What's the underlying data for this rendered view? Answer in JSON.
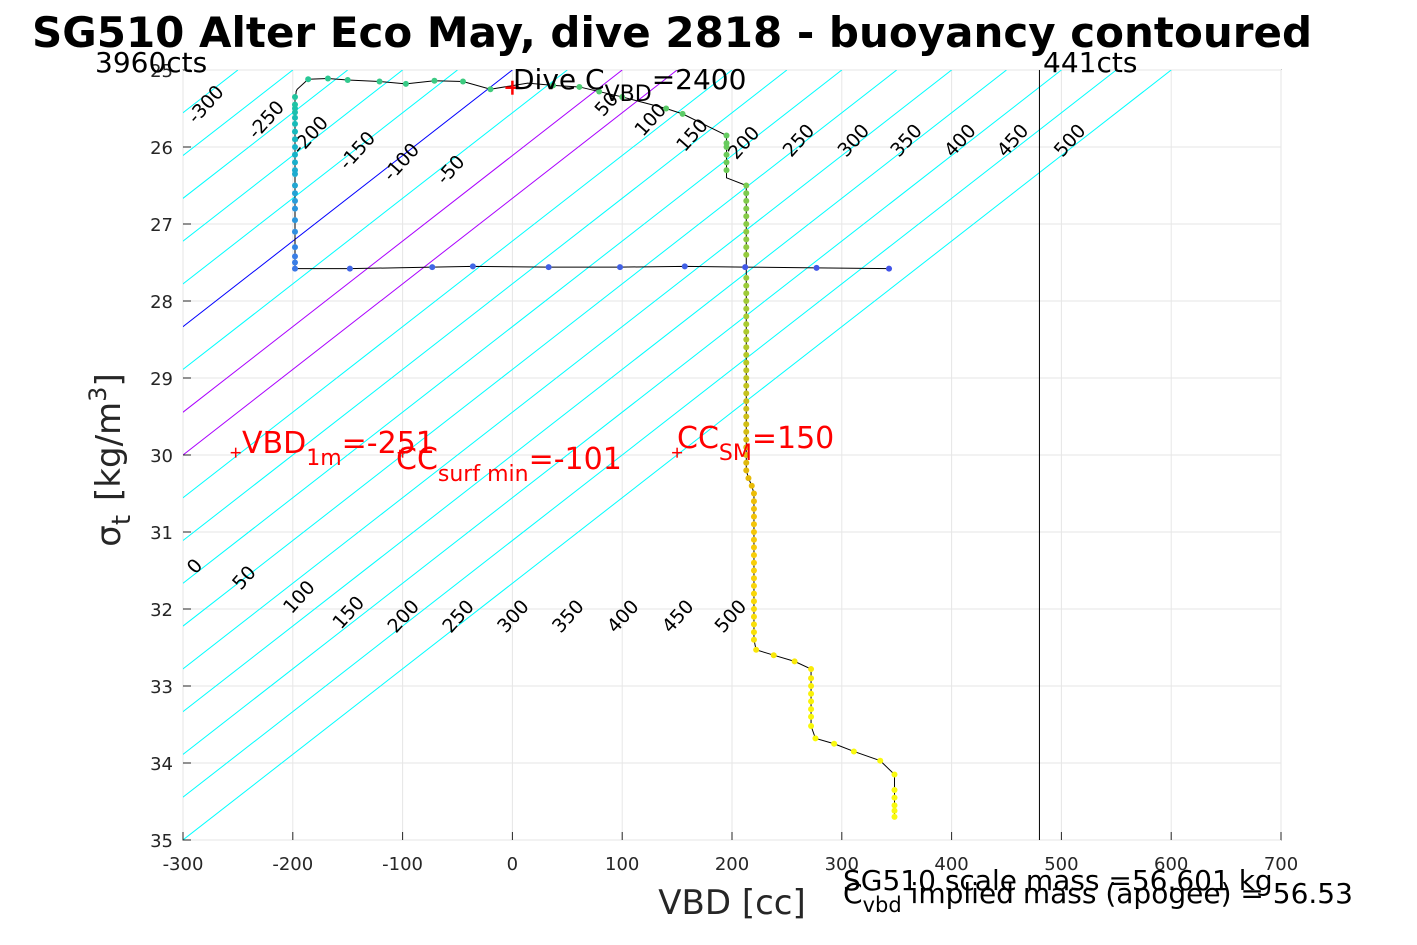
{
  "chart_data": {
    "type": "scatter",
    "title": "SG510 Alter Eco May, dive 2818 - buoyancy contoured",
    "xlabel": "VBD [cc]",
    "ylabel": "σ",
    "ylabel_sub": "t",
    "ylabel_unit": "[kg/m",
    "ylabel_sup": "3",
    "ylabel_close": "]",
    "xlim": [
      -300,
      700
    ],
    "ylim": [
      35,
      25
    ],
    "y_reversed": true,
    "grid": true,
    "x_ticks": [
      "-300",
      "-200",
      "-100",
      "0",
      "100",
      "200",
      "300",
      "400",
      "500",
      "600",
      "700"
    ],
    "y_ticks": [
      "25",
      "26",
      "27",
      "28",
      "29",
      "30",
      "31",
      "32",
      "33",
      "34",
      "35"
    ],
    "corner_left": "3960cts",
    "corner_right": "441cts",
    "count_line_x": 480,
    "header": {
      "main": "Dive C",
      "sub": "VBD",
      "rest": "=2400"
    },
    "contour_slope": 0.01111,
    "contours": [
      {
        "level": "-300",
        "color": "#00ffff",
        "x_at_25": -300
      },
      {
        "level": "-250",
        "color": "#00ffff",
        "x_at_25": -250
      },
      {
        "level": "-200",
        "color": "#00ffff",
        "x_at_25": -200
      },
      {
        "level": "-150",
        "color": "#00ffff",
        "x_at_25": -150
      },
      {
        "level": "-100",
        "color": "#00ffff",
        "x_at_25": -100
      },
      {
        "level": "-50",
        "color": "#00ffff",
        "x_at_25": -50
      },
      {
        "level": "0",
        "color": "#0000ff",
        "x_at_25": 0
      },
      {
        "level": "50",
        "color": "#00ffff",
        "x_at_25": 50
      },
      {
        "level": "100",
        "color": "#aa00ff",
        "x_at_25": 100
      },
      {
        "level": "150",
        "color": "#aa00ff",
        "x_at_25": 150
      },
      {
        "level": "200",
        "color": "#00ffff",
        "x_at_25": 200
      },
      {
        "level": "250",
        "color": "#00ffff",
        "x_at_25": 250
      },
      {
        "level": "300",
        "color": "#00ffff",
        "x_at_25": 300
      },
      {
        "level": "350",
        "color": "#00ffff",
        "x_at_25": 350
      },
      {
        "level": "400",
        "color": "#00ffff",
        "x_at_25": 400
      },
      {
        "level": "450",
        "color": "#00ffff",
        "x_at_25": 450
      },
      {
        "level": "500",
        "color": "#00ffff",
        "x_at_25": 500
      },
      {
        "level": "",
        "color": "#00ffff",
        "x_at_25": 550
      },
      {
        "level": "",
        "color": "#00ffff",
        "x_at_25": 600
      }
    ],
    "contour_labels_top": [
      {
        "text": "-300",
        "x": -275,
        "y": 25.5
      },
      {
        "text": "-250",
        "x": -220,
        "y": 25.7
      },
      {
        "text": "-200",
        "x": -180,
        "y": 25.9
      },
      {
        "text": "-150",
        "x": -137,
        "y": 26.1
      },
      {
        "text": "-100",
        "x": -97,
        "y": 26.25
      },
      {
        "text": "-50",
        "x": -52,
        "y": 26.35
      },
      {
        "text": "50",
        "x": 90,
        "y": 25.5
      },
      {
        "text": "100",
        "x": 130,
        "y": 25.7
      },
      {
        "text": "150",
        "x": 168,
        "y": 25.9
      },
      {
        "text": "200",
        "x": 215,
        "y": 26.0
      },
      {
        "text": "250",
        "x": 265,
        "y": 25.97
      },
      {
        "text": "300",
        "x": 315,
        "y": 25.97
      },
      {
        "text": "350",
        "x": 363,
        "y": 25.97
      },
      {
        "text": "400",
        "x": 412,
        "y": 25.97
      },
      {
        "text": "450",
        "x": 460,
        "y": 25.97
      },
      {
        "text": "500",
        "x": 512,
        "y": 25.97
      }
    ],
    "contour_labels_bottom": [
      {
        "text": "0",
        "x": -285,
        "y": 31.5
      },
      {
        "text": "50",
        "x": -240,
        "y": 31.65
      },
      {
        "text": "100",
        "x": -190,
        "y": 31.9
      },
      {
        "text": "150",
        "x": -145,
        "y": 32.1
      },
      {
        "text": "200",
        "x": -95,
        "y": 32.15
      },
      {
        "text": "250",
        "x": -45,
        "y": 32.15
      },
      {
        "text": "300",
        "x": 5,
        "y": 32.15
      },
      {
        "text": "350",
        "x": 55,
        "y": 32.15
      },
      {
        "text": "400",
        "x": 105,
        "y": 32.15
      },
      {
        "text": "450",
        "x": 155,
        "y": 32.15
      },
      {
        "text": "500",
        "x": 203,
        "y": 32.15
      }
    ],
    "series": [
      {
        "x": [
          343,
          277,
          212,
          157,
          98,
          33,
          -36,
          -73,
          -148,
          -198,
          -198,
          -198,
          -198,
          -198,
          -198,
          -198,
          -198,
          -198,
          -198,
          -198,
          -198,
          -198,
          -198,
          -198,
          -198,
          -198,
          -198,
          -198,
          -198,
          -198,
          -198,
          -198,
          -197,
          -197,
          -196,
          -186,
          -168,
          -150,
          -121,
          -97,
          -71,
          -45,
          -20,
          14,
          37,
          61,
          79,
          100,
          140,
          155,
          195,
          195,
          195,
          195,
          195,
          195,
          195,
          213
        ],
        "y": [
          27.58,
          27.57,
          27.56,
          27.55,
          27.56,
          27.56,
          27.55,
          27.56,
          27.58,
          27.58,
          27.5,
          27.42,
          27.3,
          27.1,
          26.95,
          26.8,
          26.7,
          26.6,
          26.5,
          26.35,
          26.3,
          26.2,
          26.1,
          26.0,
          25.9,
          25.8,
          25.7,
          25.62,
          25.55,
          25.5,
          25.45,
          25.35,
          25.3,
          25.28,
          25.25,
          25.12,
          25.11,
          25.13,
          25.15,
          25.18,
          25.14,
          25.15,
          25.25,
          25.17,
          25.2,
          25.22,
          25.28,
          25.35,
          25.5,
          25.57,
          25.85,
          25.95,
          26.0,
          26.1,
          26.2,
          26.3,
          26.4,
          26.5
        ]
      }
    ],
    "points": [
      {
        "x": 343,
        "y": 27.58,
        "c": "#4153e8"
      },
      {
        "x": 277,
        "y": 27.57,
        "c": "#4157e8"
      },
      {
        "x": 212,
        "y": 27.56,
        "c": "#4157e8"
      },
      {
        "x": 157,
        "y": 27.55,
        "c": "#4160e5"
      },
      {
        "x": 98,
        "y": 27.56,
        "c": "#4160e5"
      },
      {
        "x": 33,
        "y": 27.56,
        "c": "#4160e5"
      },
      {
        "x": -36,
        "y": 27.55,
        "c": "#4166e5"
      },
      {
        "x": -73,
        "y": 27.56,
        "c": "#4166e5"
      },
      {
        "x": -148,
        "y": 27.58,
        "c": "#4166e5"
      },
      {
        "x": -198,
        "y": 27.58,
        "c": "#3a77e6"
      },
      {
        "x": -198,
        "y": 27.5,
        "c": "#3a7ee6"
      },
      {
        "x": -198,
        "y": 27.42,
        "c": "#3a7ee6"
      },
      {
        "x": -198,
        "y": 27.3,
        "c": "#3485e4"
      },
      {
        "x": -198,
        "y": 27.1,
        "c": "#3090e0"
      },
      {
        "x": -198,
        "y": 26.95,
        "c": "#2a96dd"
      },
      {
        "x": -198,
        "y": 26.8,
        "c": "#2a96dd"
      },
      {
        "x": -198,
        "y": 26.7,
        "c": "#2a9bd9"
      },
      {
        "x": -198,
        "y": 26.6,
        "c": "#22a2d5"
      },
      {
        "x": -198,
        "y": 26.5,
        "c": "#22a6d2"
      },
      {
        "x": -198,
        "y": 26.35,
        "c": "#1dabcf"
      },
      {
        "x": -198,
        "y": 26.3,
        "c": "#1dabcf"
      },
      {
        "x": -198,
        "y": 26.2,
        "c": "#18afcc"
      },
      {
        "x": -198,
        "y": 26.1,
        "c": "#16b3c8"
      },
      {
        "x": -198,
        "y": 26.0,
        "c": "#16b3c8"
      },
      {
        "x": -198,
        "y": 25.9,
        "c": "#16b7c2"
      },
      {
        "x": -198,
        "y": 25.8,
        "c": "#16b9be"
      },
      {
        "x": -198,
        "y": 25.7,
        "c": "#17bbb9"
      },
      {
        "x": -198,
        "y": 25.62,
        "c": "#19bdb4"
      },
      {
        "x": -198,
        "y": 25.55,
        "c": "#1bbfae"
      },
      {
        "x": -198,
        "y": 25.5,
        "c": "#1cc1aa"
      },
      {
        "x": -198,
        "y": 25.45,
        "c": "#1ec3a4"
      },
      {
        "x": -198,
        "y": 25.35,
        "c": "#22c59e"
      },
      {
        "x": -186,
        "y": 25.12,
        "c": "#28c796"
      },
      {
        "x": -168,
        "y": 25.11,
        "c": "#2dc892"
      },
      {
        "x": -150,
        "y": 25.13,
        "c": "#31c98e"
      },
      {
        "x": -121,
        "y": 25.15,
        "c": "#35c98a"
      },
      {
        "x": -97,
        "y": 25.18,
        "c": "#38ca86"
      },
      {
        "x": -71,
        "y": 25.14,
        "c": "#3bca83"
      },
      {
        "x": -45,
        "y": 25.15,
        "c": "#3ecb80"
      },
      {
        "x": -20,
        "y": 25.25,
        "c": "#42cb7c"
      },
      {
        "x": 37,
        "y": 25.2,
        "c": "#48cb78"
      },
      {
        "x": 61,
        "y": 25.22,
        "c": "#4ccb74"
      },
      {
        "x": 79,
        "y": 25.28,
        "c": "#50cb70"
      },
      {
        "x": 100,
        "y": 25.35,
        "c": "#54cb6c"
      },
      {
        "x": 140,
        "y": 25.5,
        "c": "#5acb68"
      },
      {
        "x": 155,
        "y": 25.57,
        "c": "#5dcb66"
      },
      {
        "x": 195,
        "y": 25.85,
        "c": "#64cb60"
      },
      {
        "x": 195,
        "y": 25.95,
        "c": "#66cb5e"
      },
      {
        "x": 195,
        "y": 26.0,
        "c": "#68cb5c"
      },
      {
        "x": 195,
        "y": 26.1,
        "c": "#6acb5a"
      },
      {
        "x": 195,
        "y": 26.2,
        "c": "#6ccb58"
      },
      {
        "x": 195,
        "y": 26.3,
        "c": "#6ecb56"
      },
      {
        "x": 213,
        "y": 26.5,
        "c": "#7acb50"
      },
      {
        "x": 213,
        "y": 26.6,
        "c": "#7dcb4e"
      },
      {
        "x": 213,
        "y": 26.7,
        "c": "#80cb4c"
      },
      {
        "x": 213,
        "y": 26.8,
        "c": "#83cb4a"
      },
      {
        "x": 213,
        "y": 26.9,
        "c": "#86cb48"
      },
      {
        "x": 213,
        "y": 27.0,
        "c": "#89cb46"
      },
      {
        "x": 213,
        "y": 27.1,
        "c": "#8ccb44"
      },
      {
        "x": 213,
        "y": 27.2,
        "c": "#8fcb42"
      },
      {
        "x": 213,
        "y": 27.3,
        "c": "#92cb40"
      },
      {
        "x": 213,
        "y": 27.4,
        "c": "#95cb3e"
      },
      {
        "x": 213,
        "y": 27.7,
        "c": "#98cb3c"
      },
      {
        "x": 213,
        "y": 27.8,
        "c": "#9bcb3a"
      },
      {
        "x": 213,
        "y": 27.9,
        "c": "#9ecb38"
      },
      {
        "x": 213,
        "y": 28.0,
        "c": "#a1cb36"
      },
      {
        "x": 213,
        "y": 28.1,
        "c": "#a4cb34"
      },
      {
        "x": 213,
        "y": 28.2,
        "c": "#a7cb32"
      },
      {
        "x": 213,
        "y": 28.3,
        "c": "#aacb30"
      },
      {
        "x": 213,
        "y": 28.4,
        "c": "#adcb2e"
      },
      {
        "x": 213,
        "y": 28.5,
        "c": "#b0c92c"
      },
      {
        "x": 213,
        "y": 28.6,
        "c": "#b3c82a"
      },
      {
        "x": 213,
        "y": 28.7,
        "c": "#b6c728"
      },
      {
        "x": 213,
        "y": 28.8,
        "c": "#b9c626"
      },
      {
        "x": 213,
        "y": 28.9,
        "c": "#bcc524"
      },
      {
        "x": 213,
        "y": 29.0,
        "c": "#bfc422"
      },
      {
        "x": 213,
        "y": 29.1,
        "c": "#c2c320"
      },
      {
        "x": 213,
        "y": 29.2,
        "c": "#c5c21e"
      },
      {
        "x": 213,
        "y": 29.3,
        "c": "#c8c11c"
      },
      {
        "x": 213,
        "y": 29.4,
        "c": "#cbc01a"
      },
      {
        "x": 213,
        "y": 29.5,
        "c": "#cebf18"
      },
      {
        "x": 213,
        "y": 29.6,
        "c": "#d1be16"
      },
      {
        "x": 213,
        "y": 29.7,
        "c": "#d4bd14"
      },
      {
        "x": 213,
        "y": 29.8,
        "c": "#d7bc12"
      },
      {
        "x": 213,
        "y": 29.9,
        "c": "#dabb10"
      },
      {
        "x": 213,
        "y": 30.0,
        "c": "#ddba0e"
      },
      {
        "x": 213,
        "y": 30.1,
        "c": "#e0b90c"
      },
      {
        "x": 213,
        "y": 30.2,
        "c": "#e3b90a"
      },
      {
        "x": 215,
        "y": 30.3,
        "c": "#e6ba08"
      },
      {
        "x": 218,
        "y": 30.4,
        "c": "#e9bb08"
      },
      {
        "x": 220,
        "y": 30.5,
        "c": "#ecbd08"
      },
      {
        "x": 220,
        "y": 30.6,
        "c": "#eebf08"
      },
      {
        "x": 220,
        "y": 30.7,
        "c": "#f0c108"
      },
      {
        "x": 220,
        "y": 30.8,
        "c": "#f2c308"
      },
      {
        "x": 220,
        "y": 30.9,
        "c": "#f4c508"
      },
      {
        "x": 220,
        "y": 31.0,
        "c": "#f5c708"
      },
      {
        "x": 220,
        "y": 31.1,
        "c": "#f6c908"
      },
      {
        "x": 220,
        "y": 31.2,
        "c": "#f7cb08"
      },
      {
        "x": 220,
        "y": 31.3,
        "c": "#f8cd08"
      },
      {
        "x": 220,
        "y": 31.4,
        "c": "#f8cf08"
      },
      {
        "x": 220,
        "y": 31.5,
        "c": "#f9d108"
      },
      {
        "x": 220,
        "y": 31.6,
        "c": "#f9d308"
      },
      {
        "x": 220,
        "y": 31.7,
        "c": "#f9d508"
      },
      {
        "x": 220,
        "y": 31.8,
        "c": "#f9d708"
      },
      {
        "x": 220,
        "y": 31.9,
        "c": "#f9d908"
      },
      {
        "x": 220,
        "y": 32.0,
        "c": "#f9db08"
      },
      {
        "x": 220,
        "y": 32.1,
        "c": "#f9dd08"
      },
      {
        "x": 220,
        "y": 32.2,
        "c": "#f9df08"
      },
      {
        "x": 220,
        "y": 32.3,
        "c": "#f9e108"
      },
      {
        "x": 220,
        "y": 32.4,
        "c": "#f9e308"
      },
      {
        "x": 222,
        "y": 32.53,
        "c": "#f9e508"
      },
      {
        "x": 238,
        "y": 32.6,
        "c": "#f9e708"
      },
      {
        "x": 257,
        "y": 32.68,
        "c": "#f9e908"
      },
      {
        "x": 272,
        "y": 32.78,
        "c": "#f9eb08"
      },
      {
        "x": 272,
        "y": 32.9,
        "c": "#f9ed08"
      },
      {
        "x": 272,
        "y": 33.0,
        "c": "#f9ef08"
      },
      {
        "x": 272,
        "y": 33.1,
        "c": "#f9f108"
      },
      {
        "x": 272,
        "y": 33.2,
        "c": "#f9f308"
      },
      {
        "x": 272,
        "y": 33.3,
        "c": "#f9f508"
      },
      {
        "x": 272,
        "y": 33.4,
        "c": "#f9f708"
      },
      {
        "x": 272,
        "y": 33.52,
        "c": "#f9f908"
      },
      {
        "x": 276,
        "y": 33.68,
        "c": "#f9f908"
      },
      {
        "x": 293,
        "y": 33.75,
        "c": "#f9f910"
      },
      {
        "x": 311,
        "y": 33.85,
        "c": "#f9f910"
      },
      {
        "x": 335,
        "y": 33.97,
        "c": "#f9f910"
      },
      {
        "x": 348,
        "y": 34.15,
        "c": "#f9f910"
      },
      {
        "x": 348,
        "y": 34.35,
        "c": "#f9f910"
      },
      {
        "x": 348,
        "y": 34.45,
        "c": "#f9f910"
      },
      {
        "x": 348,
        "y": 34.55,
        "c": "#f9f910"
      },
      {
        "x": 348,
        "y": 34.62,
        "c": "#f9f910"
      },
      {
        "x": 348,
        "y": 34.7,
        "c": "#f9f910"
      }
    ],
    "lower_profile_x": [
      213,
      213,
      215,
      218,
      220,
      220,
      220,
      222,
      238,
      257,
      272,
      272,
      276,
      293,
      311,
      335,
      348,
      348
    ],
    "lower_profile_y": [
      26.5,
      30.2,
      30.3,
      30.4,
      30.5,
      31.0,
      32.4,
      32.53,
      32.6,
      32.68,
      32.78,
      33.52,
      33.68,
      33.75,
      33.85,
      33.97,
      34.15,
      34.7
    ],
    "red_markers": [
      {
        "x": 0,
        "y": 25.23,
        "size": "big"
      },
      {
        "x": -252,
        "y": 29.97,
        "size": "small"
      },
      {
        "x": -100,
        "y": 29.97,
        "size": "small"
      },
      {
        "x": 150,
        "y": 29.97,
        "size": "small"
      }
    ],
    "annotations": [
      {
        "main": "VBD",
        "sub": "1m",
        "rest": "=-251"
      },
      {
        "main": "CC",
        "sub": "surf min",
        "rest": "=-101"
      },
      {
        "main": "CC",
        "sub": "SM",
        "rest": "=150"
      }
    ],
    "footer": {
      "line1": "SG510 scale mass =56.601 kg",
      "line2_main": "C",
      "line2_sub": "vbd",
      "line2_rest": "  implied mass (apogee) = 56.53"
    }
  }
}
